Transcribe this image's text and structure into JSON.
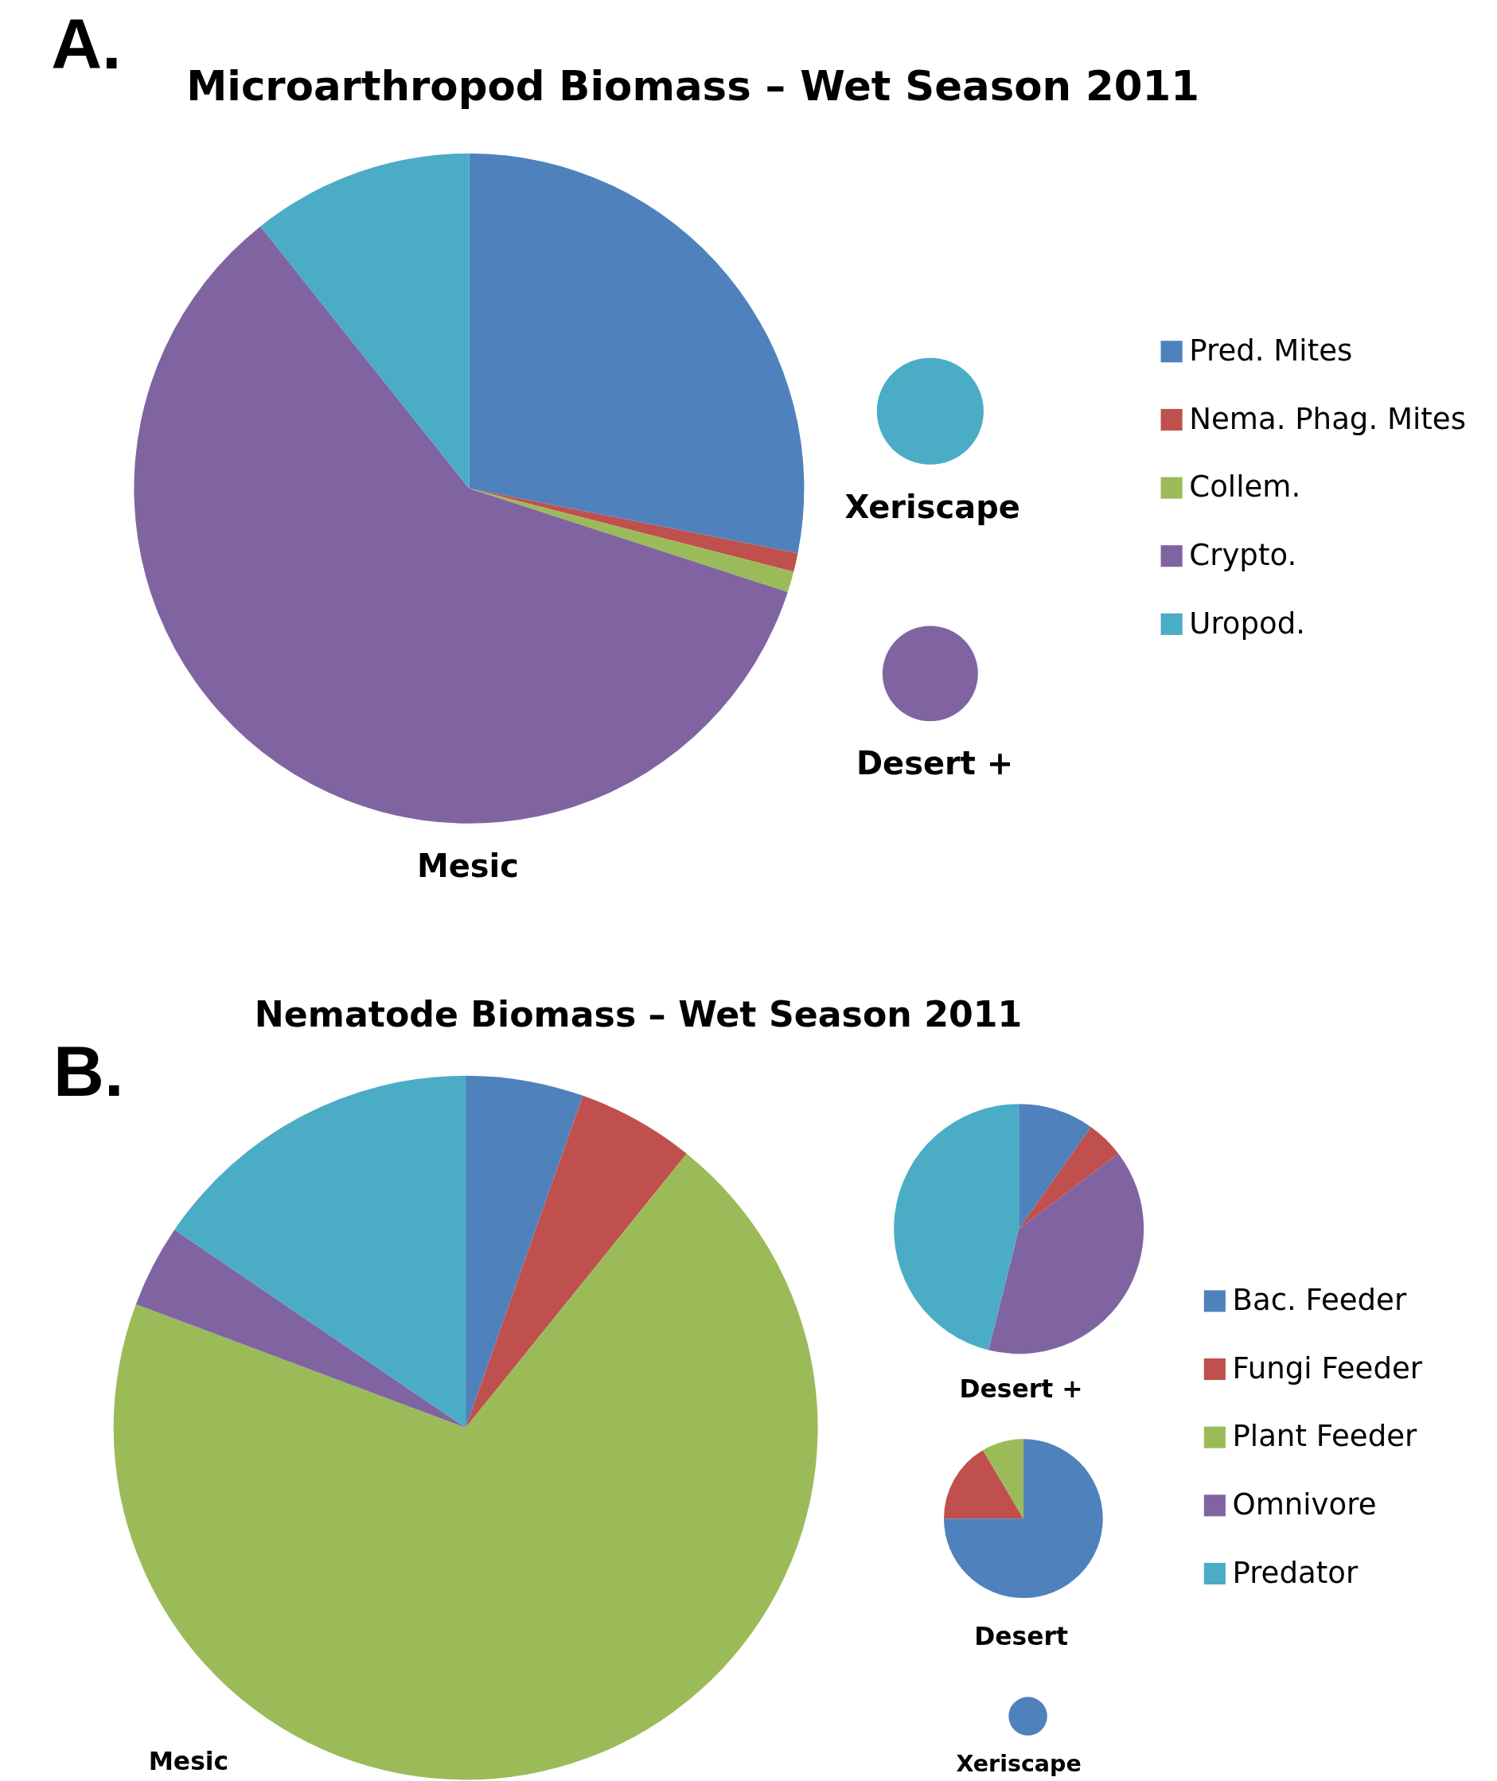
{
  "chart_data": [
    {
      "type": "pie",
      "title": "Microarthropod Biomass – Wet Season 2011",
      "annotations": [
        "A."
      ],
      "xlabel": "Mesic",
      "legend": "right",
      "categories": [
        "Pred. Mites",
        "Nema. Phag. Mites",
        "Collem.",
        "Crypto.",
        "Uropod."
      ],
      "values": [
        28.1,
        0.9,
        1.0,
        59.3,
        10.7
      ],
      "colors": [
        "#4f81bd",
        "#c0504d",
        "#9bbb59",
        "#8064a2",
        "#4bacc6"
      ]
    },
    {
      "type": "pie",
      "xlabel": "Xeriscape",
      "categories": [
        null
      ],
      "values": [
        100
      ],
      "colors": [
        "#4bacc6"
      ]
    },
    {
      "type": "pie",
      "xlabel": "Desert +",
      "categories": [
        null
      ],
      "values": [
        100
      ],
      "colors": [
        "#8064a2"
      ]
    },
    {
      "type": "pie",
      "title": "Nematode Biomass – Wet Season 2011",
      "annotations": [
        "B."
      ],
      "xlabel": "Mesic",
      "legend": "right",
      "categories": [
        "Bac. Feeder",
        "Fungi Feeder",
        "Plant Feeder",
        "Omnivore",
        "Predator"
      ],
      "values": [
        5.4,
        5.4,
        69.9,
        3.8,
        15.5
      ],
      "colors": [
        "#4f81bd",
        "#c0504d",
        "#9bbb59",
        "#8064a2",
        "#4bacc6"
      ]
    },
    {
      "type": "pie",
      "xlabel": "Desert +",
      "categories": [
        null,
        null,
        null,
        null
      ],
      "values": [
        9.8,
        4.9,
        39.2,
        46.1
      ],
      "colors": [
        "#4f81bd",
        "#c0504d",
        "#8064a2",
        "#4bacc6"
      ]
    },
    {
      "type": "pie",
      "xlabel": "Desert",
      "categories": [
        null,
        null,
        null
      ],
      "values": [
        75,
        16.5,
        8.5
      ],
      "colors": [
        "#4f81bd",
        "#c0504d",
        "#9bbb59"
      ]
    },
    {
      "type": "pie",
      "xlabel": "Xeriscape",
      "categories": [
        null
      ],
      "values": [
        100
      ],
      "colors": [
        "#4f81bd"
      ]
    }
  ]
}
